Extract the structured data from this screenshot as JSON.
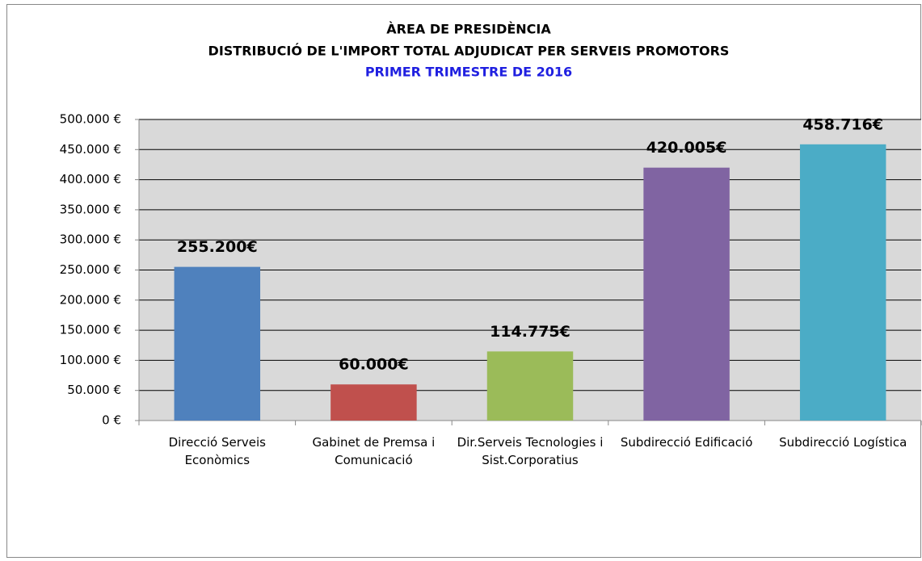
{
  "chart_data": {
    "type": "bar",
    "title": "ÀREA DE PRESIDÈNCIA",
    "subtitle": "DISTRIBUCIÓ DE L'IMPORT TOTAL ADJUDICAT PER SERVEIS PROMOTORS",
    "period": "PRIMER TRIMESTRE DE 2016",
    "categories": [
      "Direcció Serveis Econòmics",
      "Gabinet de Premsa i Comunicació",
      "Dir.Serveis Tecnologies i Sist.Corporatius",
      "Subdirecció Edificació",
      "Subdirecció Logística"
    ],
    "values": [
      255200,
      60000,
      114775,
      420005,
      458716
    ],
    "value_labels": [
      "255.200€",
      "60.000€",
      "114.775€",
      "420.005€",
      "458.716€"
    ],
    "colors": [
      "#4f81bd",
      "#c0504d",
      "#9bbb59",
      "#8064a2",
      "#4bacc6"
    ],
    "ylim": [
      0,
      500000
    ],
    "yticks": [
      {
        "value": 0,
        "label": "0 €"
      },
      {
        "value": 50000,
        "label": "50.000 €"
      },
      {
        "value": 100000,
        "label": "100.000 €"
      },
      {
        "value": 150000,
        "label": "150.000 €"
      },
      {
        "value": 200000,
        "label": "200.000 €"
      },
      {
        "value": 250000,
        "label": "250.000 €"
      },
      {
        "value": 300000,
        "label": "300.000 €"
      },
      {
        "value": 350000,
        "label": "350.000 €"
      },
      {
        "value": 400000,
        "label": "400.000 €"
      },
      {
        "value": 450000,
        "label": "450.000 €"
      },
      {
        "value": 500000,
        "label": "500.000 €"
      }
    ],
    "grid": true
  }
}
